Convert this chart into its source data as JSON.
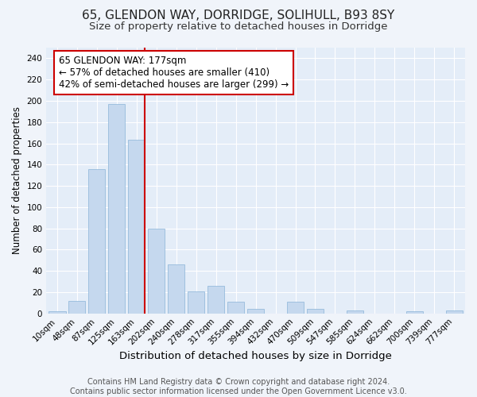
{
  "title": "65, GLENDON WAY, DORRIDGE, SOLIHULL, B93 8SY",
  "subtitle": "Size of property relative to detached houses in Dorridge",
  "xlabel": "Distribution of detached houses by size in Dorridge",
  "ylabel": "Number of detached properties",
  "categories": [
    "10sqm",
    "48sqm",
    "87sqm",
    "125sqm",
    "163sqm",
    "202sqm",
    "240sqm",
    "278sqm",
    "317sqm",
    "355sqm",
    "394sqm",
    "432sqm",
    "470sqm",
    "509sqm",
    "547sqm",
    "585sqm",
    "624sqm",
    "662sqm",
    "700sqm",
    "739sqm",
    "777sqm"
  ],
  "values": [
    2,
    12,
    136,
    197,
    163,
    80,
    46,
    21,
    26,
    11,
    4,
    0,
    11,
    4,
    0,
    3,
    0,
    0,
    2,
    0,
    3
  ],
  "bar_color": "#c5d8ee",
  "bar_edge_color": "#8ab4d8",
  "annotation_text": "65 GLENDON WAY: 177sqm\n← 57% of detached houses are smaller (410)\n42% of semi-detached houses are larger (299) →",
  "annotation_box_color": "#ffffff",
  "annotation_box_edge": "#cc0000",
  "vline_color": "#cc0000",
  "ylim": [
    0,
    250
  ],
  "yticks": [
    0,
    20,
    40,
    60,
    80,
    100,
    120,
    140,
    160,
    180,
    200,
    220,
    240
  ],
  "footnote": "Contains HM Land Registry data © Crown copyright and database right 2024.\nContains public sector information licensed under the Open Government Licence v3.0.",
  "fig_bg_color": "#f0f4fa",
  "plot_bg_color": "#e4edf8",
  "grid_color": "#ffffff",
  "title_fontsize": 11,
  "subtitle_fontsize": 9.5,
  "xlabel_fontsize": 9.5,
  "ylabel_fontsize": 8.5,
  "tick_fontsize": 7.5,
  "annotation_fontsize": 8.5,
  "footnote_fontsize": 7
}
